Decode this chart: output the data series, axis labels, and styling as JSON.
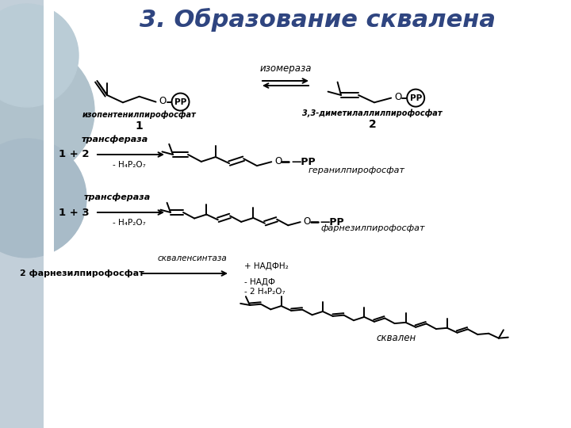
{
  "title": "3. Образование сквалена",
  "title_fontsize": 22,
  "title_color": "#2F4580",
  "bg_color": "#FFFFFF",
  "left_bg": "#C0CED8",
  "text_color": "#000000",
  "line_color": "#000000",
  "labels": {
    "izomerase": "изомераза",
    "compound1_name": "изопентенилпирофосфат",
    "compound1_num": "1",
    "compound2_name": "3,3-диметилаллилпирофосфат",
    "compound2_num": "2",
    "transferase1": "трансфераза",
    "reaction1": "1 + 2",
    "minus1": "- H₄P₂O₇",
    "geranyl": "геранилпирофосфат",
    "transferase2": "трансфераза",
    "reaction2": "1 + 3",
    "minus2": "- H₄P₂O₇",
    "farnesyl": "фарнезилпирофосфат",
    "squalene_synthase": "скваленсинтаза",
    "reaction3": "2 фарнезилпирофосфат",
    "nadph": "+ НАДФН₂",
    "nadp": "- НАДФ",
    "minus3": "- 2 Н₄Р₂О₇",
    "squalene": "сквален"
  }
}
